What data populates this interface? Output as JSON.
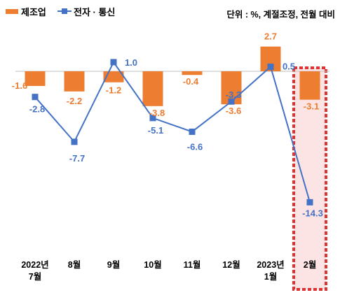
{
  "chart_data": {
    "type": "bar",
    "unit_note": "단위 : %, 계절조정, 전월 대비",
    "categories": [
      [
        "2022년",
        "7월"
      ],
      [
        "8월"
      ],
      [
        "9월"
      ],
      [
        "10월"
      ],
      [
        "11월"
      ],
      [
        "12월"
      ],
      [
        "2023년",
        "1월"
      ],
      [
        "2월"
      ]
    ],
    "series": [
      {
        "name": "제조업",
        "kind": "bar",
        "values": [
          -1.6,
          -2.2,
          -1.2,
          -3.8,
          -0.4,
          -3.6,
          2.7,
          -3.1
        ],
        "labels": [
          "-1.6",
          "-2.2",
          "-1.2",
          "-3.8",
          "-0.4",
          "-3.6",
          "2.7",
          "-3.1"
        ]
      },
      {
        "name": "전자 · 통신",
        "kind": "line",
        "values": [
          -2.8,
          -7.7,
          1.0,
          -5.1,
          -6.6,
          -3.3,
          0.5,
          -14.3
        ],
        "labels": [
          "-2.8",
          "-7.7",
          "1.0",
          "-5.1",
          "-6.6",
          "-3.3",
          "0.5",
          "-14.3"
        ]
      }
    ],
    "highlighted_category_index": 7,
    "colors": {
      "bar": "#ED7D31",
      "line": "#4472C4",
      "highlight_fill": "#FDE4E4",
      "highlight_border": "#E03030"
    }
  }
}
